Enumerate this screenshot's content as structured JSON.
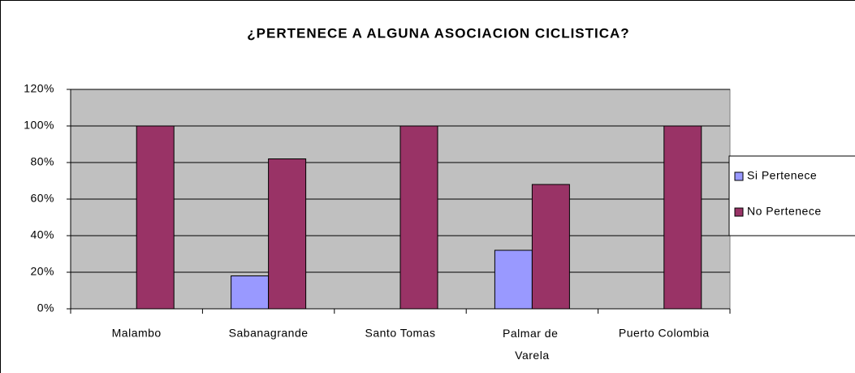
{
  "chart_data": {
    "type": "bar",
    "title": "¿PERTENECE A ALGUNA ASOCIACION CICLISTICA?",
    "categories": [
      "Malambo",
      "Sabanagrande",
      "Santo Tomas",
      "Palmar de Varela",
      "Puerto Colombia"
    ],
    "series": [
      {
        "name": "Si Pertenece",
        "color": "#9999ff",
        "values": [
          0,
          18,
          0,
          32,
          0
        ]
      },
      {
        "name": "No Pertenece",
        "color": "#993366",
        "values": [
          100,
          82,
          100,
          68,
          100
        ]
      }
    ],
    "ylim": [
      0,
      120
    ],
    "yticks": [
      {
        "value": 0,
        "label": "0%"
      },
      {
        "value": 20,
        "label": "20%"
      },
      {
        "value": 40,
        "label": "40%"
      },
      {
        "value": 60,
        "label": "60%"
      },
      {
        "value": 80,
        "label": "80%"
      },
      {
        "value": 100,
        "label": "100%"
      },
      {
        "value": 120,
        "label": "120%"
      }
    ],
    "grid": true,
    "legend": "right"
  }
}
